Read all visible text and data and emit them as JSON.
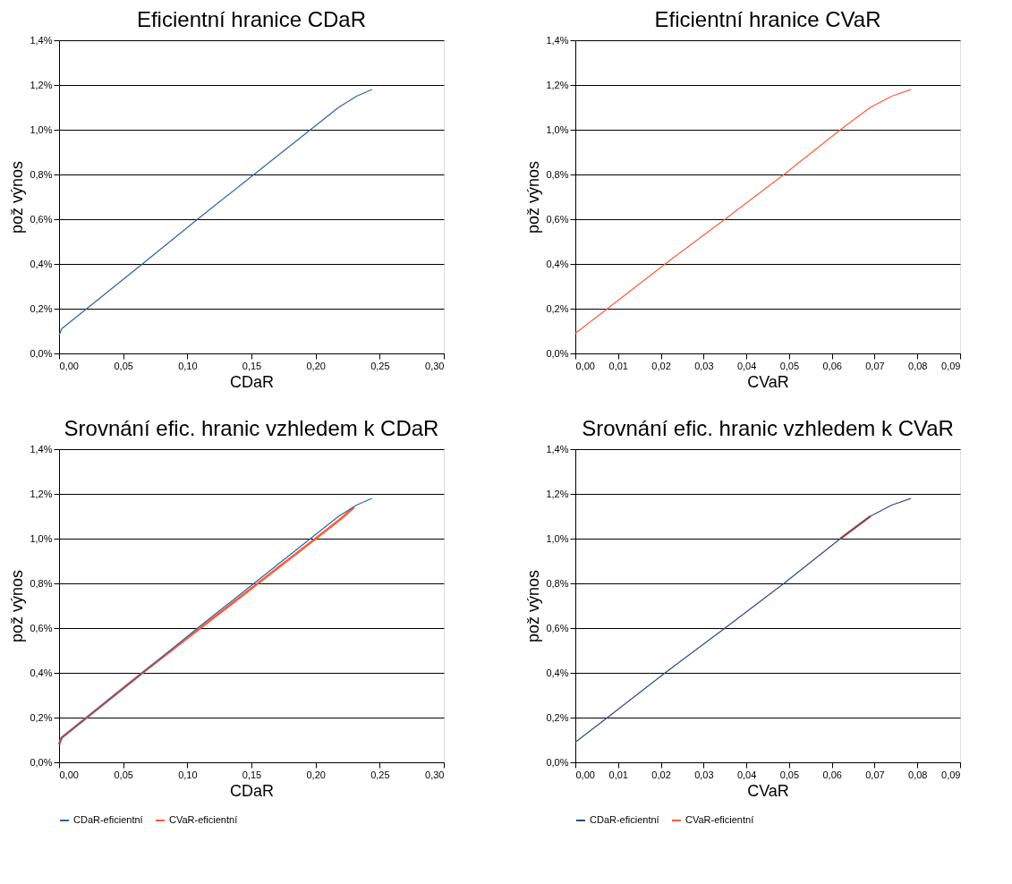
{
  "chart_data": [
    {
      "type": "line",
      "title": "Eficientní hranice CDaR",
      "xlabel": "CDaR",
      "ylabel": "pož výnos",
      "grid": "y",
      "xlim": [
        0,
        0.3
      ],
      "xticks": [
        {
          "value": 0,
          "label": "0,00"
        },
        {
          "value": 0.05,
          "label": "0,05"
        },
        {
          "value": 0.1,
          "label": "0,10"
        },
        {
          "value": 0.15,
          "label": "0,15"
        },
        {
          "value": 0.2,
          "label": "0,20"
        },
        {
          "value": 0.25,
          "label": "0,25"
        },
        {
          "value": 0.3,
          "label": "0,30"
        }
      ],
      "ylim": [
        0,
        1.4
      ],
      "yticks": [
        {
          "value": 0,
          "label": "0,0%"
        },
        {
          "value": 0.2,
          "label": "0,2%"
        },
        {
          "value": 0.4,
          "label": "0,4%"
        },
        {
          "value": 0.6,
          "label": "0,6%"
        },
        {
          "value": 0.8,
          "label": "0,8%"
        },
        {
          "value": 1.0,
          "label": "1,0%"
        },
        {
          "value": 1.2,
          "label": "1,2%"
        },
        {
          "value": 1.4,
          "label": "1,4%"
        }
      ],
      "series": [
        {
          "color": "#2f63a4",
          "x": [
            0,
            0.002,
            0.065,
            0.108,
            0.152,
            0.196,
            0.218,
            0.232,
            0.244
          ],
          "values": [
            0.08,
            0.11,
            0.4,
            0.6,
            0.8,
            1.0,
            1.1,
            1.15,
            1.18
          ]
        }
      ]
    },
    {
      "type": "line",
      "title": "Eficientní hranice CVaR",
      "xlabel": "CVaR",
      "ylabel": "pož výnos",
      "grid": "y",
      "xlim": [
        0,
        0.09
      ],
      "xticks": [
        {
          "value": 0,
          "label": "0,00"
        },
        {
          "value": 0.01,
          "label": "0,01"
        },
        {
          "value": 0.02,
          "label": "0,02"
        },
        {
          "value": 0.03,
          "label": "0,03"
        },
        {
          "value": 0.04,
          "label": "0,04"
        },
        {
          "value": 0.05,
          "label": "0,05"
        },
        {
          "value": 0.06,
          "label": "0,06"
        },
        {
          "value": 0.07,
          "label": "0,07"
        },
        {
          "value": 0.08,
          "label": "0,08"
        },
        {
          "value": 0.09,
          "label": "0,09"
        }
      ],
      "ylim": [
        0,
        1.4
      ],
      "yticks": [
        {
          "value": 0,
          "label": "0,0%"
        },
        {
          "value": 0.2,
          "label": "0,2%"
        },
        {
          "value": 0.4,
          "label": "0,4%"
        },
        {
          "value": 0.6,
          "label": "0,6%"
        },
        {
          "value": 0.8,
          "label": "0,8%"
        },
        {
          "value": 1.0,
          "label": "1,0%"
        },
        {
          "value": 1.2,
          "label": "1,2%"
        },
        {
          "value": 1.4,
          "label": "1,4%"
        }
      ],
      "series": [
        {
          "color": "#ff5b3a",
          "x": [
            0,
            0.0075,
            0.021,
            0.035,
            0.0488,
            0.062,
            0.069,
            0.074,
            0.0785
          ],
          "values": [
            0.09,
            0.2,
            0.4,
            0.6,
            0.8,
            1.0,
            1.1,
            1.15,
            1.18
          ]
        }
      ]
    },
    {
      "type": "line",
      "title": "Srovnání efic. hranic vzhledem k CDaR",
      "xlabel": "CDaR",
      "ylabel": "pož výnos",
      "grid": "y",
      "legend": "bottom",
      "xlim": [
        0,
        0.3
      ],
      "xticks": [
        {
          "value": 0,
          "label": "0,00"
        },
        {
          "value": 0.05,
          "label": "0,05"
        },
        {
          "value": 0.1,
          "label": "0,10"
        },
        {
          "value": 0.15,
          "label": "0,15"
        },
        {
          "value": 0.2,
          "label": "0,20"
        },
        {
          "value": 0.25,
          "label": "0,25"
        },
        {
          "value": 0.3,
          "label": "0,30"
        }
      ],
      "ylim": [
        0,
        1.4
      ],
      "yticks": [
        {
          "value": 0,
          "label": "0,0%"
        },
        {
          "value": 0.2,
          "label": "0,2%"
        },
        {
          "value": 0.4,
          "label": "0,4%"
        },
        {
          "value": 0.6,
          "label": "0,6%"
        },
        {
          "value": 0.8,
          "label": "0,8%"
        },
        {
          "value": 1.0,
          "label": "1,0%"
        },
        {
          "value": 1.2,
          "label": "1,2%"
        },
        {
          "value": 1.4,
          "label": "1,4%"
        }
      ],
      "series": [
        {
          "name": "CDaR-eficientní",
          "color": "#2f63a4",
          "x": [
            0,
            0.002,
            0.065,
            0.108,
            0.152,
            0.196,
            0.218,
            0.232,
            0.244
          ],
          "values": [
            0.08,
            0.11,
            0.4,
            0.6,
            0.8,
            1.0,
            1.1,
            1.15,
            1.18
          ]
        },
        {
          "name": "CVaR-eficientní",
          "color": "#ff5b3a",
          "x": [
            0,
            0.002,
            0.065,
            0.11,
            0.155,
            0.2,
            0.22,
            0.23
          ],
          "values": [
            0.08,
            0.11,
            0.4,
            0.6,
            0.8,
            1.0,
            1.09,
            1.14
          ]
        }
      ]
    },
    {
      "type": "line",
      "title": "Srovnání efic. hranic vzhledem k CVaR",
      "xlabel": "CVaR",
      "ylabel": "pož výnos",
      "grid": "y",
      "legend": "bottom",
      "xlim": [
        0,
        0.09
      ],
      "xticks": [
        {
          "value": 0,
          "label": "0,00"
        },
        {
          "value": 0.01,
          "label": "0,01"
        },
        {
          "value": 0.02,
          "label": "0,02"
        },
        {
          "value": 0.03,
          "label": "0,03"
        },
        {
          "value": 0.04,
          "label": "0,04"
        },
        {
          "value": 0.05,
          "label": "0,05"
        },
        {
          "value": 0.06,
          "label": "0,06"
        },
        {
          "value": 0.07,
          "label": "0,07"
        },
        {
          "value": 0.08,
          "label": "0,08"
        },
        {
          "value": 0.09,
          "label": "0,09"
        }
      ],
      "ylim": [
        0,
        1.4
      ],
      "yticks": [
        {
          "value": 0,
          "label": "0,0%"
        },
        {
          "value": 0.2,
          "label": "0,2%"
        },
        {
          "value": 0.4,
          "label": "0,4%"
        },
        {
          "value": 0.6,
          "label": "0,6%"
        },
        {
          "value": 0.8,
          "label": "0,8%"
        },
        {
          "value": 1.0,
          "label": "1,0%"
        },
        {
          "value": 1.2,
          "label": "1,2%"
        },
        {
          "value": 1.4,
          "label": "1,4%"
        }
      ],
      "series": [
        {
          "name": "CDaR-eficientní",
          "color": "#2f4a80",
          "x": [
            0,
            0.0075,
            0.021,
            0.035,
            0.0488,
            0.062,
            0.069,
            0.074,
            0.0785
          ],
          "values": [
            0.09,
            0.2,
            0.4,
            0.6,
            0.8,
            1.0,
            1.1,
            1.15,
            1.18
          ]
        },
        {
          "name": "CVaR-eficientní",
          "color": "#ff5b3a",
          "x": [
            0.062,
            0.069
          ],
          "values": [
            1.0,
            1.1
          ]
        }
      ]
    }
  ]
}
